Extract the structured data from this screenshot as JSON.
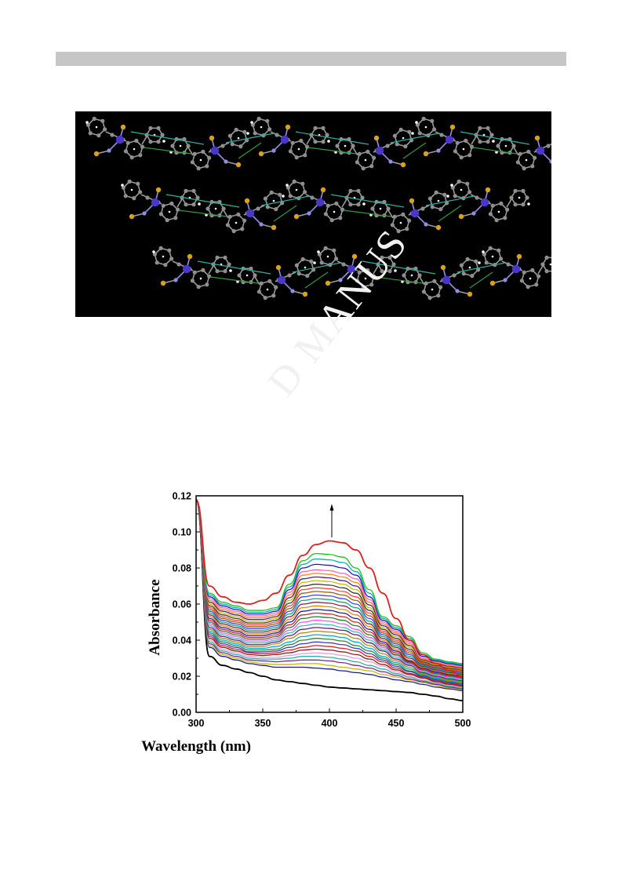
{
  "watermark": "D MANUS",
  "crystal_figure": {
    "background": "#000000",
    "atom_colors": {
      "carbon": "#8f8f8f",
      "metal": "#4a36c9",
      "sulfur": "#d8a21a",
      "nitrogen": "#8e8ee6",
      "hydrogen": "#ffffff"
    },
    "bond_colors": {
      "hydrogen_bond": "#2ab3a4",
      "pi_interaction": "#2f9a3a"
    }
  },
  "chart_data": {
    "type": "line",
    "title": "",
    "xlabel": "Wavelength (nm)",
    "ylabel": "Absorbance",
    "xlim": [
      300,
      500
    ],
    "ylim": [
      0,
      0.12
    ],
    "xticks": [
      "300",
      "350",
      "400",
      "450",
      "500"
    ],
    "yticks": [
      "0.00",
      "0.02",
      "0.04",
      "0.06",
      "0.08",
      "0.10",
      "0.12"
    ],
    "annotation": "arrow at 400 nm pointing up (increasing absorbance)",
    "x": [
      300,
      310,
      320,
      330,
      340,
      350,
      360,
      370,
      380,
      390,
      400,
      410,
      420,
      430,
      440,
      450,
      460,
      470,
      480,
      490,
      500
    ],
    "series": [
      {
        "color": "#000000",
        "values": [
          0.118,
          0.031,
          0.026,
          0.024,
          0.022,
          0.02,
          0.018,
          0.017,
          0.016,
          0.015,
          0.014,
          0.0135,
          0.013,
          0.0125,
          0.012,
          0.0115,
          0.011,
          0.01,
          0.009,
          0.0075,
          0.0065
        ]
      },
      {
        "color": "#1a1aa0",
        "values": [
          0.118,
          0.036,
          0.031,
          0.029,
          0.027,
          0.026,
          0.025,
          0.025,
          0.025,
          0.0245,
          0.024,
          0.023,
          0.022,
          0.021,
          0.0195,
          0.018,
          0.017,
          0.0155,
          0.014,
          0.013,
          0.012
        ]
      },
      {
        "color": "#c8b400",
        "values": [
          0.118,
          0.037,
          0.032,
          0.03,
          0.028,
          0.027,
          0.0265,
          0.0265,
          0.027,
          0.027,
          0.026,
          0.025,
          0.024,
          0.023,
          0.021,
          0.0195,
          0.018,
          0.0165,
          0.015,
          0.0135,
          0.0125
        ]
      },
      {
        "color": "#7a2a8a",
        "values": [
          0.118,
          0.038,
          0.033,
          0.031,
          0.029,
          0.0285,
          0.028,
          0.0285,
          0.029,
          0.029,
          0.0285,
          0.0275,
          0.026,
          0.0245,
          0.0225,
          0.0205,
          0.0185,
          0.017,
          0.0155,
          0.014,
          0.013
        ]
      },
      {
        "color": "#2ab3a4",
        "values": [
          0.118,
          0.039,
          0.034,
          0.032,
          0.03,
          0.0295,
          0.0295,
          0.03,
          0.031,
          0.031,
          0.0305,
          0.0295,
          0.028,
          0.026,
          0.024,
          0.0215,
          0.0195,
          0.0175,
          0.016,
          0.0145,
          0.0135
        ]
      },
      {
        "color": "#e0a0e0",
        "values": [
          0.118,
          0.04,
          0.035,
          0.033,
          0.031,
          0.0305,
          0.0305,
          0.0315,
          0.0325,
          0.033,
          0.0325,
          0.0315,
          0.03,
          0.028,
          0.0255,
          0.0225,
          0.02,
          0.018,
          0.0165,
          0.015,
          0.014
        ]
      },
      {
        "color": "#8a1a1a",
        "values": [
          0.118,
          0.041,
          0.036,
          0.034,
          0.032,
          0.0315,
          0.032,
          0.033,
          0.0345,
          0.035,
          0.0345,
          0.0335,
          0.032,
          0.0295,
          0.0265,
          0.0235,
          0.021,
          0.019,
          0.017,
          0.0155,
          0.0145
        ]
      },
      {
        "color": "#d02020",
        "values": [
          0.118,
          0.042,
          0.037,
          0.035,
          0.033,
          0.0325,
          0.033,
          0.0345,
          0.036,
          0.037,
          0.0365,
          0.0355,
          0.034,
          0.031,
          0.028,
          0.0245,
          0.0215,
          0.0195,
          0.0175,
          0.016,
          0.015
        ]
      },
      {
        "color": "#3a3ad0",
        "values": [
          0.118,
          0.043,
          0.038,
          0.036,
          0.0335,
          0.0335,
          0.034,
          0.036,
          0.038,
          0.039,
          0.0385,
          0.0375,
          0.0355,
          0.0325,
          0.029,
          0.0255,
          0.0225,
          0.02,
          0.018,
          0.0165,
          0.0155
        ]
      },
      {
        "color": "#2a8a2a",
        "values": [
          0.118,
          0.044,
          0.039,
          0.037,
          0.0345,
          0.0345,
          0.035,
          0.0375,
          0.04,
          0.041,
          0.0405,
          0.0395,
          0.037,
          0.034,
          0.03,
          0.0265,
          0.023,
          0.0205,
          0.0185,
          0.017,
          0.016
        ]
      },
      {
        "color": "#00a8e0",
        "values": [
          0.118,
          0.045,
          0.04,
          0.038,
          0.0355,
          0.0355,
          0.0365,
          0.039,
          0.042,
          0.043,
          0.0425,
          0.0415,
          0.039,
          0.0355,
          0.031,
          0.0275,
          0.024,
          0.021,
          0.019,
          0.0175,
          0.0165
        ]
      },
      {
        "color": "#b88a00",
        "values": [
          0.118,
          0.046,
          0.041,
          0.039,
          0.0365,
          0.0365,
          0.038,
          0.041,
          0.044,
          0.045,
          0.0445,
          0.0435,
          0.041,
          0.037,
          0.0325,
          0.0285,
          0.025,
          0.0215,
          0.0195,
          0.018,
          0.017
        ]
      },
      {
        "color": "#6a1a7a",
        "values": [
          0.118,
          0.047,
          0.042,
          0.04,
          0.0375,
          0.0375,
          0.039,
          0.0425,
          0.046,
          0.047,
          0.0465,
          0.0455,
          0.043,
          0.0385,
          0.034,
          0.0295,
          0.026,
          0.022,
          0.02,
          0.0185,
          0.0175
        ]
      },
      {
        "color": "#30c0c0",
        "values": [
          0.118,
          0.048,
          0.043,
          0.041,
          0.0385,
          0.0385,
          0.04,
          0.044,
          0.048,
          0.049,
          0.0485,
          0.047,
          0.0445,
          0.04,
          0.035,
          0.0305,
          0.0265,
          0.0225,
          0.0205,
          0.019,
          0.018
        ]
      },
      {
        "color": "#ff50ff",
        "values": [
          0.118,
          0.049,
          0.044,
          0.042,
          0.0395,
          0.0395,
          0.041,
          0.0455,
          0.05,
          0.051,
          0.0505,
          0.049,
          0.046,
          0.0415,
          0.036,
          0.0315,
          0.027,
          0.023,
          0.021,
          0.0195,
          0.0185
        ]
      },
      {
        "color": "#2a7a2a",
        "values": [
          0.118,
          0.05,
          0.045,
          0.043,
          0.0405,
          0.0405,
          0.042,
          0.047,
          0.052,
          0.053,
          0.0525,
          0.051,
          0.048,
          0.043,
          0.037,
          0.032,
          0.0275,
          0.0235,
          0.0215,
          0.02,
          0.019
        ]
      },
      {
        "color": "#e02020",
        "values": [
          0.118,
          0.051,
          0.046,
          0.044,
          0.0415,
          0.0415,
          0.043,
          0.0485,
          0.054,
          0.055,
          0.0545,
          0.053,
          0.05,
          0.0445,
          0.038,
          0.033,
          0.028,
          0.024,
          0.022,
          0.0205,
          0.0195
        ]
      },
      {
        "color": "#1a1ab0",
        "values": [
          0.118,
          0.052,
          0.047,
          0.045,
          0.0425,
          0.0425,
          0.044,
          0.05,
          0.056,
          0.057,
          0.0565,
          0.055,
          0.052,
          0.046,
          0.039,
          0.034,
          0.0285,
          0.0245,
          0.0225,
          0.021,
          0.02
        ]
      },
      {
        "color": "#e08a00",
        "values": [
          0.118,
          0.053,
          0.048,
          0.046,
          0.0435,
          0.0435,
          0.045,
          0.0515,
          0.058,
          0.059,
          0.0585,
          0.057,
          0.054,
          0.0475,
          0.04,
          0.035,
          0.029,
          0.025,
          0.023,
          0.0215,
          0.0205
        ]
      },
      {
        "color": "#8a1a50",
        "values": [
          0.118,
          0.054,
          0.049,
          0.047,
          0.0445,
          0.0445,
          0.046,
          0.053,
          0.06,
          0.061,
          0.0605,
          0.059,
          0.056,
          0.049,
          0.041,
          0.036,
          0.03,
          0.0255,
          0.0235,
          0.022,
          0.021
        ]
      },
      {
        "color": "#00b070",
        "values": [
          0.118,
          0.055,
          0.05,
          0.048,
          0.0455,
          0.0455,
          0.047,
          0.0545,
          0.062,
          0.063,
          0.0625,
          0.061,
          0.058,
          0.0505,
          0.042,
          0.037,
          0.031,
          0.026,
          0.024,
          0.0225,
          0.0215
        ]
      },
      {
        "color": "#4040ff",
        "values": [
          0.118,
          0.056,
          0.051,
          0.049,
          0.0465,
          0.0465,
          0.048,
          0.056,
          0.064,
          0.065,
          0.0645,
          0.063,
          0.06,
          0.052,
          0.043,
          0.038,
          0.032,
          0.0265,
          0.0245,
          0.023,
          0.022
        ]
      },
      {
        "color": "#a06000",
        "values": [
          0.118,
          0.057,
          0.052,
          0.05,
          0.0475,
          0.0475,
          0.049,
          0.0575,
          0.066,
          0.067,
          0.0665,
          0.065,
          0.062,
          0.0535,
          0.044,
          0.039,
          0.033,
          0.027,
          0.025,
          0.0235,
          0.0225
        ]
      },
      {
        "color": "#ff4040",
        "values": [
          0.118,
          0.058,
          0.053,
          0.051,
          0.0485,
          0.0485,
          0.05,
          0.059,
          0.068,
          0.069,
          0.0685,
          0.067,
          0.064,
          0.055,
          0.045,
          0.04,
          0.034,
          0.0275,
          0.0255,
          0.024,
          0.023
        ]
      },
      {
        "color": "#3a3a3a",
        "values": [
          0.118,
          0.059,
          0.054,
          0.052,
          0.0495,
          0.0495,
          0.051,
          0.0605,
          0.07,
          0.071,
          0.0705,
          0.069,
          0.066,
          0.0565,
          0.046,
          0.041,
          0.035,
          0.028,
          0.026,
          0.0245,
          0.0235
        ]
      },
      {
        "color": "#c0c000",
        "values": [
          0.118,
          0.06,
          0.055,
          0.053,
          0.0505,
          0.0505,
          0.052,
          0.062,
          0.072,
          0.073,
          0.0725,
          0.071,
          0.068,
          0.058,
          0.047,
          0.042,
          0.036,
          0.0285,
          0.0265,
          0.025,
          0.024
        ]
      },
      {
        "color": "#5a1a8a",
        "values": [
          0.118,
          0.061,
          0.056,
          0.054,
          0.0515,
          0.0515,
          0.053,
          0.0635,
          0.074,
          0.075,
          0.0745,
          0.073,
          0.07,
          0.0595,
          0.048,
          0.043,
          0.037,
          0.029,
          0.027,
          0.0255,
          0.0245
        ]
      },
      {
        "color": "#ff8800",
        "values": [
          0.118,
          0.062,
          0.057,
          0.055,
          0.0525,
          0.0525,
          0.054,
          0.065,
          0.076,
          0.077,
          0.0765,
          0.075,
          0.072,
          0.061,
          0.049,
          0.044,
          0.038,
          0.0295,
          0.0275,
          0.026,
          0.025
        ]
      },
      {
        "color": "#ff60c0",
        "values": [
          0.118,
          0.063,
          0.058,
          0.056,
          0.0535,
          0.0535,
          0.055,
          0.0665,
          0.078,
          0.079,
          0.0785,
          0.077,
          0.074,
          0.0625,
          0.05,
          0.045,
          0.039,
          0.03,
          0.028,
          0.0265,
          0.0255
        ]
      },
      {
        "color": "#1a1ac0",
        "values": [
          0.118,
          0.064,
          0.059,
          0.057,
          0.0545,
          0.0545,
          0.056,
          0.068,
          0.08,
          0.082,
          0.0815,
          0.08,
          0.076,
          0.064,
          0.051,
          0.046,
          0.04,
          0.031,
          0.0285,
          0.027,
          0.026
        ]
      },
      {
        "color": "#00b0b0",
        "values": [
          0.118,
          0.065,
          0.06,
          0.058,
          0.0555,
          0.0555,
          0.057,
          0.0695,
          0.082,
          0.085,
          0.0845,
          0.083,
          0.078,
          0.066,
          0.052,
          0.047,
          0.041,
          0.032,
          0.029,
          0.0275,
          0.0265
        ]
      },
      {
        "color": "#20c020",
        "values": [
          0.118,
          0.066,
          0.061,
          0.059,
          0.0565,
          0.0565,
          0.058,
          0.071,
          0.084,
          0.088,
          0.0875,
          0.086,
          0.08,
          0.068,
          0.053,
          0.048,
          0.042,
          0.033,
          0.0295,
          0.028,
          0.027
        ]
      },
      {
        "color": "#e02020",
        "values": [
          0.118,
          0.07,
          0.064,
          0.061,
          0.06,
          0.062,
          0.066,
          0.076,
          0.087,
          0.093,
          0.095,
          0.094,
          0.09,
          0.08,
          0.066,
          0.052,
          0.04,
          0.032,
          0.027,
          0.023,
          0.02
        ]
      }
    ]
  }
}
